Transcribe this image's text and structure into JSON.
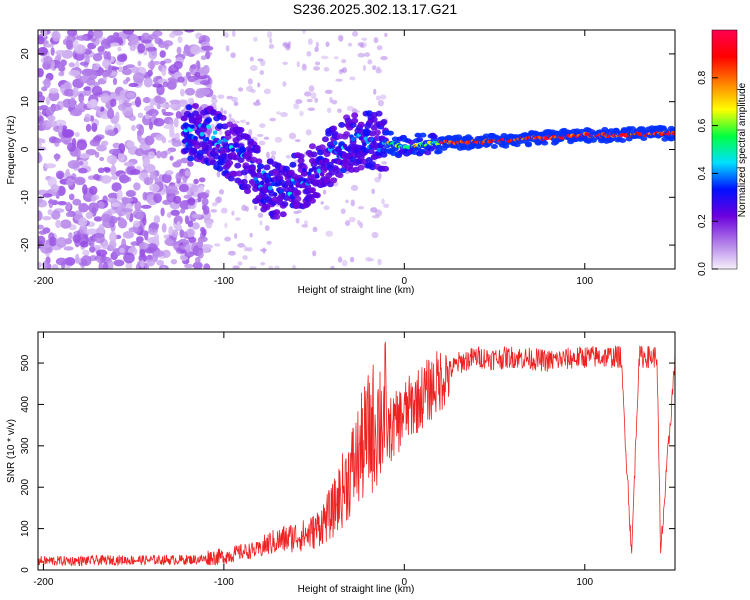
{
  "title": "S236.2025.302.13.17.G21",
  "chart_data": [
    {
      "type": "heatmap",
      "xlabel": "Height of straight line (km)",
      "ylabel": "Frequency (Hz)",
      "xlim": [
        -203,
        150
      ],
      "ylim": [
        -25,
        25
      ],
      "xticks": [
        -200,
        -100,
        0,
        100
      ],
      "yticks": [
        -20,
        -10,
        0,
        10,
        20
      ],
      "colorbar": {
        "label": "Normalized spectral amplitude",
        "range": [
          0,
          1
        ],
        "ticks": [
          0,
          0.2,
          0.4,
          0.6,
          0.8
        ],
        "colors": [
          "#f5f0fb",
          "#b07ce8",
          "#6b00dd",
          "#0010ff",
          "#00e0ff",
          "#00ff40",
          "#ffff00",
          "#ff8000",
          "#ff0000",
          "#ff0050"
        ]
      },
      "ridge": {
        "x": [
          -120,
          -110,
          -100,
          -90,
          -80,
          -70,
          -60,
          -50,
          -40,
          -30,
          -20,
          -10,
          0,
          10,
          20,
          40,
          60,
          80,
          100,
          120,
          150
        ],
        "frequency": [
          3,
          3.5,
          1,
          -2,
          -6,
          -9,
          -7,
          -5,
          -1,
          1.5,
          2,
          1.5,
          0.5,
          1,
          1.5,
          1.5,
          2,
          2.5,
          3,
          3,
          3.5
        ]
      },
      "grid": false
    },
    {
      "type": "line",
      "xlabel": "Height of straight line (km)",
      "ylabel": "SNR (10 * v/v)",
      "xlim": [
        -203,
        150
      ],
      "ylim": [
        0,
        575
      ],
      "xticks": [
        -200,
        -100,
        0,
        100
      ],
      "yticks": [
        0,
        100,
        200,
        300,
        400,
        500
      ],
      "color": "#ee2222",
      "series": [
        {
          "x": [
            -203,
            -180,
            -160,
            -140,
            -120,
            -100,
            -90,
            -80,
            -75,
            -70,
            -65,
            -60,
            -55,
            -50,
            -45,
            -40,
            -35,
            -30,
            -25,
            -20,
            -15,
            -10,
            -5,
            0,
            5,
            10,
            15,
            20,
            25,
            30,
            40,
            50,
            60,
            70,
            80,
            90,
            100,
            110,
            120,
            126,
            130,
            140,
            142,
            150
          ],
          "y": [
            22,
            22,
            24,
            24,
            25,
            28,
            40,
            45,
            55,
            60,
            65,
            70,
            72,
            80,
            100,
            120,
            160,
            200,
            240,
            280,
            310,
            330,
            350,
            380,
            400,
            420,
            440,
            460,
            480,
            500,
            515,
            510,
            515,
            510,
            505,
            510,
            515,
            515,
            515,
            40,
            515,
            515,
            40,
            510
          ]
        }
      ],
      "grid": false
    }
  ]
}
